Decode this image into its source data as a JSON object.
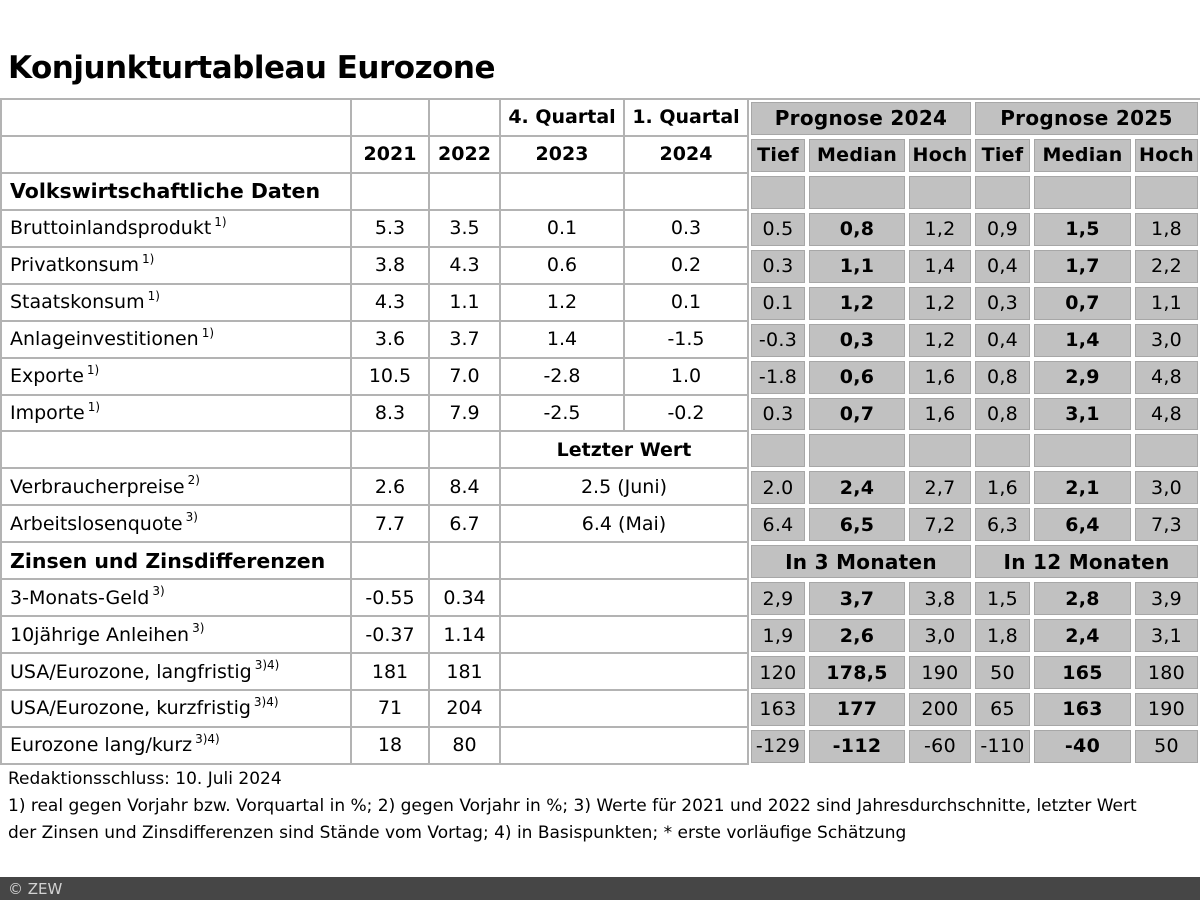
{
  "title": "Konjunkturtableau Eurozone",
  "chart_data": {
    "type": "table",
    "title": "Konjunkturtableau Eurozone",
    "header": {
      "q4_label": "4. Quartal",
      "q1_label": "1. Quartal",
      "prognose_2024": "Prognose 2024",
      "prognose_2025": "Prognose 2025",
      "year_2021": "2021",
      "year_2022": "2022",
      "year_2023": "2023",
      "year_2024": "2024",
      "tief": "Tief",
      "median": "Median",
      "hoch": "Hoch"
    },
    "rows": [
      {
        "kind": "section",
        "label": "Volkswirtschaftliche Daten",
        "white": [
          "",
          "",
          "",
          ""
        ],
        "gray": [
          "",
          "",
          "",
          "",
          "",
          ""
        ]
      },
      {
        "kind": "data",
        "label": "Bruttoinlandsprodukt",
        "sup": "1)",
        "white": [
          "5.3",
          "3.5",
          "0.1",
          "0.3"
        ],
        "gray": [
          "0.5",
          "0,8",
          "1,2",
          "0,9",
          "1,5",
          "1,8"
        ]
      },
      {
        "kind": "data",
        "label": "Privatkonsum",
        "sup": "1)",
        "white": [
          "3.8",
          "4.3",
          "0.6",
          "0.2"
        ],
        "gray": [
          "0.3",
          "1,1",
          "1,4",
          "0,4",
          "1,7",
          "2,2"
        ]
      },
      {
        "kind": "data",
        "label": "Staatskonsum",
        "sup": "1)",
        "white": [
          "4.3",
          "1.1",
          "1.2",
          "0.1"
        ],
        "gray": [
          "0.1",
          "1,2",
          "1,2",
          "0,3",
          "0,7",
          "1,1"
        ]
      },
      {
        "kind": "data",
        "label": "Anlageinvestitionen",
        "sup": "1)",
        "white": [
          "3.6",
          "3.7",
          "1.4",
          "-1.5"
        ],
        "gray": [
          "-0.3",
          "0,3",
          "1,2",
          "0,4",
          "1,4",
          "3,0"
        ]
      },
      {
        "kind": "data",
        "label": "Exporte",
        "sup": "1)",
        "white": [
          "10.5",
          "7.0",
          "-2.8",
          "1.0"
        ],
        "gray": [
          "-1.8",
          "0,6",
          "1,6",
          "0,8",
          "2,9",
          "4,8"
        ]
      },
      {
        "kind": "data",
        "label": "Importe",
        "sup": "1)",
        "white": [
          "8.3",
          "7.9",
          "-2.5",
          "-0.2"
        ],
        "gray": [
          "0.3",
          "0,7",
          "1,6",
          "0,8",
          "3,1",
          "4,8"
        ]
      },
      {
        "kind": "lastheader",
        "label": "",
        "white": [
          "",
          ""
        ],
        "merged": "Letzter Wert",
        "gray": [
          "",
          "",
          "",
          "",
          "",
          ""
        ]
      },
      {
        "kind": "merged",
        "label": "Verbraucherpreise",
        "sup": "2)",
        "white": [
          "2.6",
          "8.4"
        ],
        "merged": "2.5 (Juni)",
        "gray": [
          "2.0",
          "2,4",
          "2,7",
          "1,6",
          "2,1",
          "3,0"
        ]
      },
      {
        "kind": "merged",
        "label": "Arbeitslosenquote",
        "sup": "3)",
        "white": [
          "7.7",
          "6.7"
        ],
        "merged": "6.4 (Mai)",
        "gray": [
          "6.4",
          "6,5",
          "7,2",
          "6,3",
          "6,4",
          "7,3"
        ]
      },
      {
        "kind": "section-merged",
        "label": "Zinsen und Zinsdifferenzen",
        "white": [
          "",
          ""
        ],
        "merged": "",
        "grayMerged": [
          "In 3 Monaten",
          "In 12 Monaten"
        ]
      },
      {
        "kind": "merged",
        "label": "3-Monats-Geld",
        "sup": "3)",
        "white": [
          "-0.55",
          "0.34"
        ],
        "merged": "",
        "gray": [
          "2,9",
          "3,7",
          "3,8",
          "1,5",
          "2,8",
          "3,9"
        ]
      },
      {
        "kind": "merged",
        "label": "10jährige Anleihen",
        "sup": "3)",
        "white": [
          "-0.37",
          "1.14"
        ],
        "merged": "",
        "gray": [
          "1,9",
          "2,6",
          "3,0",
          "1,8",
          "2,4",
          "3,1"
        ]
      },
      {
        "kind": "merged",
        "label": "USA/Eurozone, langfristig",
        "sup": "3)4)",
        "white": [
          "181",
          "181"
        ],
        "merged": "",
        "gray": [
          "120",
          "178,5",
          "190",
          "50",
          "165",
          "180"
        ]
      },
      {
        "kind": "merged",
        "label": "USA/Eurozone, kurzfristig",
        "sup": "3)4)",
        "white": [
          "71",
          "204"
        ],
        "merged": "",
        "gray": [
          "163",
          "177",
          "200",
          "65",
          "163",
          "190"
        ]
      },
      {
        "kind": "merged",
        "label": "Eurozone lang/kurz",
        "sup": "3)4)",
        "white": [
          "18",
          "80"
        ],
        "merged": "",
        "gray": [
          "-129",
          "-112",
          "-60",
          "-110",
          "-40",
          "50"
        ]
      }
    ]
  },
  "footer": {
    "line1": "Redaktionsschluss: 10. Juli 2024",
    "line2": "1) real gegen Vorjahr bzw. Vorquartal in %; 2) gegen Vorjahr in %; 3) Werte für 2021 und 2022 sind Jahresdurchschnitte, letzter Wert",
    "line3": "der Zinsen und Zinsdifferenzen sind Stände vom Vortag; 4) in Basispunkten; * erste vorläufige Schätzung"
  },
  "copyright_bar": {
    "label": "© ZEW"
  },
  "colors": {
    "table_gray": "#c1c1c1",
    "grid_line": "#b3b3b3",
    "gray_cell_border": "#a7a7a7",
    "bottom_bar": "#464646",
    "bottom_bar_text": "#d2d2d2"
  }
}
